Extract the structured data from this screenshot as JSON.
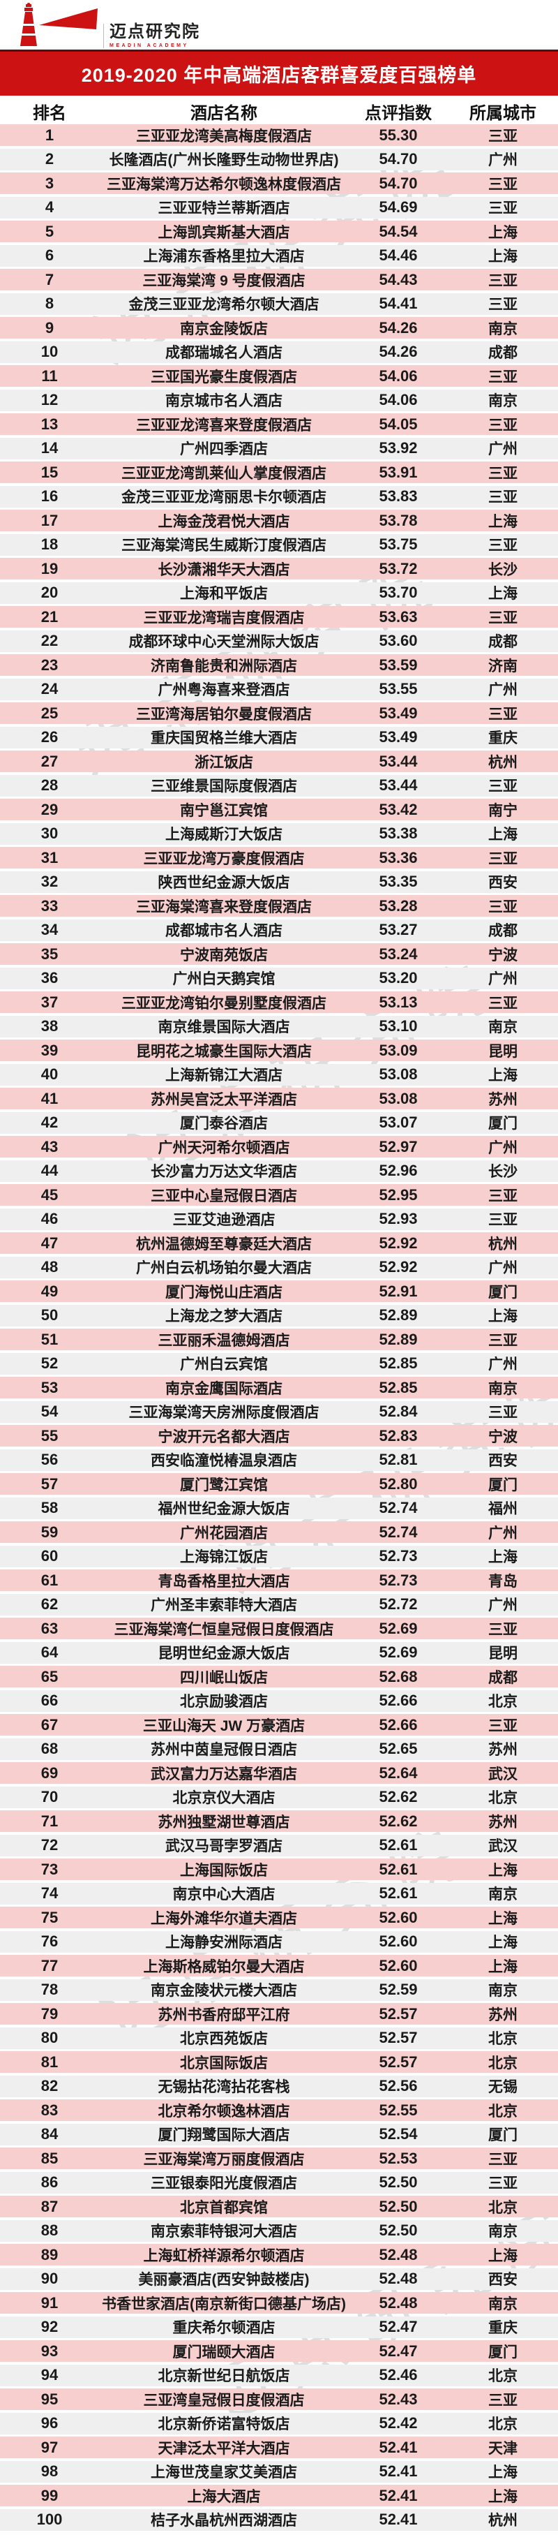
{
  "logo": {
    "name": "迈点研究院",
    "subtitle": "MEADIN ACADEMY"
  },
  "banner": {
    "title": "2019-2020 年中高端酒店客群喜爱度百强榜单"
  },
  "watermark": {
    "text": "迈点研究院"
  },
  "colors": {
    "accent_red": "#cc1212",
    "dark_red_line": "#5d0c0e",
    "row_pink": "#f8cfcf",
    "row_gray": "#efefef"
  },
  "table": {
    "headers": [
      "排名",
      "酒店名称",
      "点评指数",
      "所属城市"
    ],
    "rows": [
      [
        "1",
        "三亚亚龙湾美高梅度假酒店",
        "55.30",
        "三亚"
      ],
      [
        "2",
        "长隆酒店(广州长隆野生动物世界店)",
        "54.70",
        "广州"
      ],
      [
        "3",
        "三亚海棠湾万达希尔顿逸林度假酒店",
        "54.70",
        "三亚"
      ],
      [
        "4",
        "三亚亚特兰蒂斯酒店",
        "54.69",
        "三亚"
      ],
      [
        "5",
        "上海凯宾斯基大酒店",
        "54.54",
        "上海"
      ],
      [
        "6",
        "上海浦东香格里拉大酒店",
        "54.46",
        "上海"
      ],
      [
        "7",
        "三亚海棠湾 9 号度假酒店",
        "54.43",
        "三亚"
      ],
      [
        "8",
        "金茂三亚亚龙湾希尔顿大酒店",
        "54.41",
        "三亚"
      ],
      [
        "9",
        "南京金陵饭店",
        "54.26",
        "南京"
      ],
      [
        "10",
        "成都瑞城名人酒店",
        "54.26",
        "成都"
      ],
      [
        "11",
        "三亚国光豪生度假酒店",
        "54.06",
        "三亚"
      ],
      [
        "12",
        "南京城市名人酒店",
        "54.06",
        "南京"
      ],
      [
        "13",
        "三亚亚龙湾喜来登度假酒店",
        "54.05",
        "三亚"
      ],
      [
        "14",
        "广州四季酒店",
        "53.92",
        "广州"
      ],
      [
        "15",
        "三亚亚龙湾凯莱仙人掌度假酒店",
        "53.91",
        "三亚"
      ],
      [
        "16",
        "金茂三亚亚龙湾丽思卡尔顿酒店",
        "53.83",
        "三亚"
      ],
      [
        "17",
        "上海金茂君悦大酒店",
        "53.78",
        "上海"
      ],
      [
        "18",
        "三亚海棠湾民生威斯汀度假酒店",
        "53.75",
        "三亚"
      ],
      [
        "19",
        "长沙潇湘华天大酒店",
        "53.72",
        "长沙"
      ],
      [
        "20",
        "上海和平饭店",
        "53.70",
        "上海"
      ],
      [
        "21",
        "三亚亚龙湾瑞吉度假酒店",
        "53.63",
        "三亚"
      ],
      [
        "22",
        "成都环球中心天堂洲际大饭店",
        "53.60",
        "成都"
      ],
      [
        "23",
        "济南鲁能贵和洲际酒店",
        "53.59",
        "济南"
      ],
      [
        "24",
        "广州粤海喜来登酒店",
        "53.55",
        "广州"
      ],
      [
        "25",
        "三亚湾海居铂尔曼度假酒店",
        "53.49",
        "三亚"
      ],
      [
        "26",
        "重庆国贸格兰维大酒店",
        "53.49",
        "重庆"
      ],
      [
        "27",
        "浙江饭店",
        "53.44",
        "杭州"
      ],
      [
        "28",
        "三亚维景国际度假酒店",
        "53.44",
        "三亚"
      ],
      [
        "29",
        "南宁邕江宾馆",
        "53.42",
        "南宁"
      ],
      [
        "30",
        "上海威斯汀大饭店",
        "53.38",
        "上海"
      ],
      [
        "31",
        "三亚亚龙湾万豪度假酒店",
        "53.36",
        "三亚"
      ],
      [
        "32",
        "陕西世纪金源大饭店",
        "53.35",
        "西安"
      ],
      [
        "33",
        "三亚海棠湾喜来登度假酒店",
        "53.28",
        "三亚"
      ],
      [
        "34",
        "成都城市名人酒店",
        "53.27",
        "成都"
      ],
      [
        "35",
        "宁波南苑饭店",
        "53.24",
        "宁波"
      ],
      [
        "36",
        "广州白天鹅宾馆",
        "53.20",
        "广州"
      ],
      [
        "37",
        "三亚亚龙湾铂尔曼别墅度假酒店",
        "53.13",
        "三亚"
      ],
      [
        "38",
        "南京维景国际大酒店",
        "53.10",
        "南京"
      ],
      [
        "39",
        "昆明花之城豪生国际大酒店",
        "53.09",
        "昆明"
      ],
      [
        "40",
        "上海新锦江大酒店",
        "53.08",
        "上海"
      ],
      [
        "41",
        "苏州吴宫泛太平洋酒店",
        "53.08",
        "苏州"
      ],
      [
        "42",
        "厦门泰谷酒店",
        "53.07",
        "厦门"
      ],
      [
        "43",
        "广州天河希尔顿酒店",
        "52.97",
        "广州"
      ],
      [
        "44",
        "长沙富力万达文华酒店",
        "52.96",
        "长沙"
      ],
      [
        "45",
        "三亚中心皇冠假日酒店",
        "52.95",
        "三亚"
      ],
      [
        "46",
        "三亚艾迪逊酒店",
        "52.93",
        "三亚"
      ],
      [
        "47",
        "杭州温德姆至尊豪廷大酒店",
        "52.92",
        "杭州"
      ],
      [
        "48",
        "广州白云机场铂尔曼大酒店",
        "52.92",
        "广州"
      ],
      [
        "49",
        "厦门海悦山庄酒店",
        "52.91",
        "厦门"
      ],
      [
        "50",
        "上海龙之梦大酒店",
        "52.89",
        "上海"
      ],
      [
        "51",
        "三亚丽禾温德姆酒店",
        "52.89",
        "三亚"
      ],
      [
        "52",
        "广州白云宾馆",
        "52.85",
        "广州"
      ],
      [
        "53",
        "南京金鹰国际酒店",
        "52.85",
        "南京"
      ],
      [
        "54",
        "三亚海棠湾天房洲际度假酒店",
        "52.84",
        "三亚"
      ],
      [
        "55",
        "宁波开元名都大酒店",
        "52.83",
        "宁波"
      ],
      [
        "56",
        "西安临潼悦椿温泉酒店",
        "52.81",
        "西安"
      ],
      [
        "57",
        "厦门鹭江宾馆",
        "52.80",
        "厦门"
      ],
      [
        "58",
        "福州世纪金源大饭店",
        "52.74",
        "福州"
      ],
      [
        "59",
        "广州花园酒店",
        "52.74",
        "广州"
      ],
      [
        "60",
        "上海锦江饭店",
        "52.73",
        "上海"
      ],
      [
        "61",
        "青岛香格里拉大酒店",
        "52.73",
        "青岛"
      ],
      [
        "62",
        "广州圣丰索菲特大酒店",
        "52.72",
        "广州"
      ],
      [
        "63",
        "三亚海棠湾仁恒皇冠假日度假酒店",
        "52.69",
        "三亚"
      ],
      [
        "64",
        "昆明世纪金源大饭店",
        "52.69",
        "昆明"
      ],
      [
        "65",
        "四川岷山饭店",
        "52.68",
        "成都"
      ],
      [
        "66",
        "北京励骏酒店",
        "52.66",
        "北京"
      ],
      [
        "67",
        "三亚山海天 JW 万豪酒店",
        "52.66",
        "三亚"
      ],
      [
        "68",
        "苏州中茵皇冠假日酒店",
        "52.65",
        "苏州"
      ],
      [
        "69",
        "武汉富力万达嘉华酒店",
        "52.64",
        "武汉"
      ],
      [
        "70",
        "北京京仪大酒店",
        "52.62",
        "北京"
      ],
      [
        "71",
        "苏州独墅湖世尊酒店",
        "52.62",
        "苏州"
      ],
      [
        "72",
        "武汉马哥孛罗酒店",
        "52.61",
        "武汉"
      ],
      [
        "73",
        "上海国际饭店",
        "52.61",
        "上海"
      ],
      [
        "74",
        "南京中心大酒店",
        "52.61",
        "南京"
      ],
      [
        "75",
        "上海外滩华尔道夫酒店",
        "52.60",
        "上海"
      ],
      [
        "76",
        "上海静安洲际酒店",
        "52.60",
        "上海"
      ],
      [
        "77",
        "上海斯格威铂尔曼大酒店",
        "52.60",
        "上海"
      ],
      [
        "78",
        "南京金陵状元楼大酒店",
        "52.59",
        "南京"
      ],
      [
        "79",
        "苏州书香府邸平江府",
        "52.57",
        "苏州"
      ],
      [
        "80",
        "北京西苑饭店",
        "52.57",
        "北京"
      ],
      [
        "81",
        "北京国际饭店",
        "52.57",
        "北京"
      ],
      [
        "82",
        "无锡拈花湾拈花客栈",
        "52.56",
        "无锡"
      ],
      [
        "83",
        "北京希尔顿逸林酒店",
        "52.55",
        "北京"
      ],
      [
        "84",
        "厦门翔鹭国际大酒店",
        "52.54",
        "厦门"
      ],
      [
        "85",
        "三亚海棠湾万丽度假酒店",
        "52.53",
        "三亚"
      ],
      [
        "86",
        "三亚银泰阳光度假酒店",
        "52.50",
        "三亚"
      ],
      [
        "87",
        "北京首都宾馆",
        "52.50",
        "北京"
      ],
      [
        "88",
        "南京索菲特银河大酒店",
        "52.50",
        "南京"
      ],
      [
        "89",
        "上海虹桥祥源希尔顿酒店",
        "52.48",
        "上海"
      ],
      [
        "90",
        "美丽豪酒店(西安钟鼓楼店)",
        "52.48",
        "西安"
      ],
      [
        "91",
        "书香世家酒店(南京新街口德基广场店)",
        "52.48",
        "南京"
      ],
      [
        "92",
        "重庆希尔顿酒店",
        "52.47",
        "重庆"
      ],
      [
        "93",
        "厦门瑞颐大酒店",
        "52.47",
        "厦门"
      ],
      [
        "94",
        "北京新世纪日航饭店",
        "52.46",
        "北京"
      ],
      [
        "95",
        "三亚湾皇冠假日度假酒店",
        "52.43",
        "三亚"
      ],
      [
        "96",
        "北京新侨诺富特饭店",
        "52.42",
        "北京"
      ],
      [
        "97",
        "天津泛太平洋大酒店",
        "52.41",
        "天津"
      ],
      [
        "98",
        "上海世茂皇家艾美酒店",
        "52.41",
        "上海"
      ],
      [
        "99",
        "上海大酒店",
        "52.41",
        "上海"
      ],
      [
        "100",
        "桔子水晶杭州西湖酒店",
        "52.41",
        "杭州"
      ]
    ]
  }
}
